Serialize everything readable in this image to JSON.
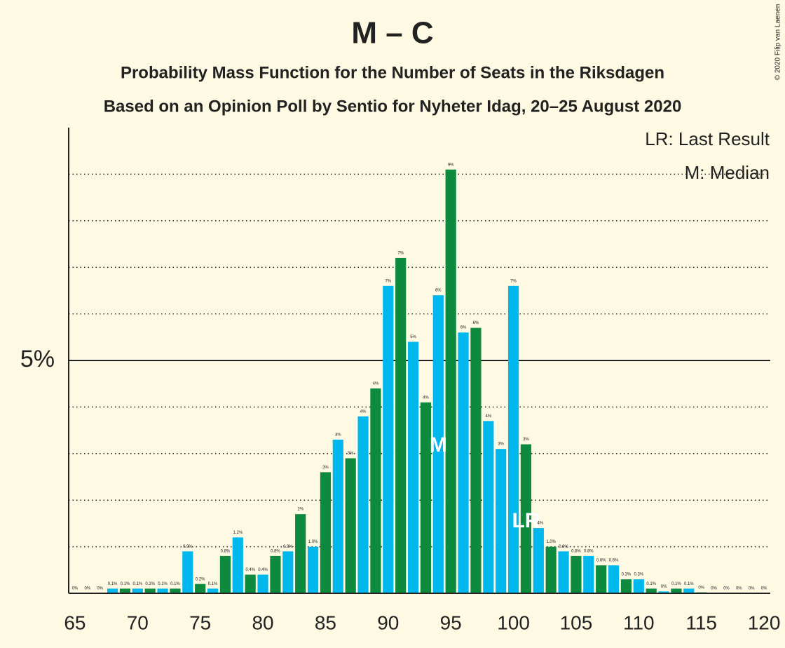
{
  "chart_data": {
    "type": "bar",
    "title": "M – C",
    "subtitle": "Probability Mass Function for the Number of Seats in the Riksdagen",
    "subtitle2": "Based on an Opinion Poll by Sentio for Nyheter Idag, 20–25 August 2020",
    "copyright": "© 2020 Filip van Laenen",
    "legend": [
      "LR: Last Result",
      "M: Median"
    ],
    "x": [
      65,
      66,
      67,
      68,
      69,
      70,
      71,
      72,
      73,
      74,
      75,
      76,
      77,
      78,
      79,
      80,
      81,
      82,
      83,
      84,
      85,
      86,
      87,
      88,
      89,
      90,
      91,
      92,
      93,
      94,
      95,
      96,
      97,
      98,
      99,
      100,
      101,
      102,
      103,
      104,
      105,
      106,
      107,
      108,
      109,
      110,
      111,
      112,
      113,
      114,
      115,
      116,
      117,
      118,
      119,
      120
    ],
    "values": [
      0,
      0,
      0,
      0.1,
      0.1,
      0.1,
      0.1,
      0.1,
      0.1,
      0.9,
      0.2,
      0.1,
      0.8,
      1.2,
      0.4,
      0.4,
      0.8,
      0.9,
      1.7,
      1.0,
      2.6,
      3.3,
      2.9,
      3.8,
      4.4,
      6.6,
      7.2,
      5.4,
      4.1,
      6.4,
      9.1,
      5.6,
      5.7,
      3.7,
      3.1,
      6.6,
      3.2,
      1.4,
      1.0,
      0.9,
      0.8,
      0.8,
      0.6,
      0.6,
      0.3,
      0.3,
      0.1,
      0.04,
      0.1,
      0.1,
      0.02,
      0,
      0,
      0,
      0,
      0
    ],
    "value_labels": [
      "0%",
      "0%",
      "0%",
      "0.1%",
      "0.1%",
      "0.1%",
      "0.1%",
      "0.1%",
      "0.1%",
      "0.9%",
      "0.2%",
      "0.1%",
      "0.8%",
      "1.2%",
      "0.4%",
      "0.4%",
      "0.8%",
      "0.9%",
      "2%",
      "1.0%",
      "3%",
      "3%",
      "3%",
      "4%",
      "4%",
      "7%",
      "7%",
      "5%",
      "4%",
      "6%",
      "9%",
      "6%",
      "6%",
      "4%",
      "3%",
      "7%",
      "3%",
      "1.4%",
      "1.0%",
      "0.9%",
      "0.8%",
      "0.8%",
      "0.6%",
      "0.6%",
      "0.3%",
      "0.3%",
      "0.1%",
      "0%",
      "0.1%",
      "0.1%",
      "0%",
      "0%",
      "0%",
      "0%",
      "0%",
      "0%"
    ],
    "colors": [
      "#00b8ee",
      "#0e8a3e",
      "#00b8ee",
      "#00b8ee",
      "#0e8a3e",
      "#00b8ee",
      "#0e8a3e",
      "#00b8ee",
      "#0e8a3e",
      "#00b8ee",
      "#0e8a3e",
      "#00b8ee",
      "#0e8a3e",
      "#00b8ee",
      "#0e8a3e",
      "#00b8ee",
      "#0e8a3e",
      "#00b8ee",
      "#0e8a3e",
      "#00b8ee",
      "#0e8a3e",
      "#00b8ee",
      "#0e8a3e",
      "#00b8ee",
      "#0e8a3e",
      "#00b8ee",
      "#0e8a3e",
      "#00b8ee",
      "#0e8a3e",
      "#00b8ee",
      "#0e8a3e",
      "#00b8ee",
      "#0e8a3e",
      "#00b8ee",
      "#00b8ee",
      "#00b8ee",
      "#0e8a3e",
      "#00b8ee",
      "#0e8a3e",
      "#00b8ee",
      "#0e8a3e",
      "#00b8ee",
      "#0e8a3e",
      "#00b8ee",
      "#0e8a3e",
      "#00b8ee",
      "#0e8a3e",
      "#00b8ee",
      "#0e8a3e",
      "#00b8ee",
      "#0e8a3e",
      "#00b8ee",
      "#0e8a3e",
      "#00b8ee",
      "#0e8a3e",
      "#00b8ee"
    ],
    "annotations": [
      {
        "text": "M",
        "x": 94
      },
      {
        "text": "LR",
        "x": 101
      }
    ],
    "xlim": [
      64.5,
      120.5
    ],
    "xticks": [
      65,
      70,
      75,
      80,
      85,
      90,
      95,
      100,
      105,
      110,
      115,
      120
    ],
    "ylim": [
      0,
      10
    ],
    "yticks": [
      {
        "value": 5,
        "label": "5%"
      }
    ],
    "grid_lines": [
      1,
      2,
      3,
      4,
      6,
      7,
      8,
      9
    ]
  }
}
